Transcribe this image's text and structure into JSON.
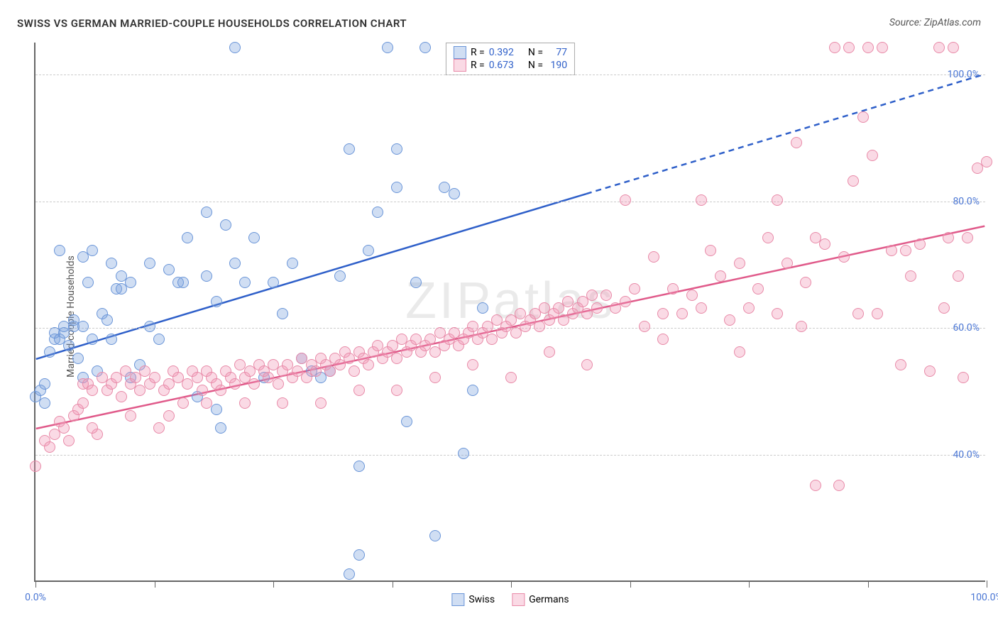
{
  "title": "SWISS VS GERMAN MARRIED-COUPLE HOUSEHOLDS CORRELATION CHART",
  "title_color": "#333333",
  "source_label": "Source: ZipAtlas.com",
  "source_color": "#555555",
  "ylabel": "Married-couple Households",
  "watermark": "ZIPatlas",
  "chart": {
    "type": "scatter",
    "xlim": [
      0,
      100
    ],
    "ylim": [
      20,
      105
    ],
    "y_gridlines": [
      40,
      60,
      80,
      100
    ],
    "y_tick_labels": [
      "40.0%",
      "60.0%",
      "80.0%",
      "100.0%"
    ],
    "y_tick_color": "#4a76d4",
    "x_ticks": [
      0,
      12.5,
      25,
      37.5,
      50,
      62.5,
      75,
      87.5,
      100
    ],
    "x_tick_labels_shown": {
      "0": "0.0%",
      "100": "100.0%"
    },
    "x_tick_color": "#4a76d4",
    "grid_color": "#cccccc",
    "axis_color": "#666666",
    "background_color": "#ffffff",
    "marker_radius": 8,
    "marker_stroke_width": 1.5,
    "series": [
      {
        "name": "Swiss",
        "fill_color": "rgba(120,160,220,0.35)",
        "stroke_color": "#6a95d8",
        "trend_color": "#2e5fc9",
        "trend_width": 2.5,
        "trend_solid_end_x": 58,
        "trend_y_at_0": 55,
        "trend_y_at_100": 100,
        "R": "0.392",
        "N": "77",
        "points": [
          [
            0,
            49
          ],
          [
            0.5,
            50
          ],
          [
            1,
            51
          ],
          [
            1.5,
            56
          ],
          [
            2,
            58
          ],
          [
            2,
            59
          ],
          [
            2.5,
            58
          ],
          [
            3,
            59
          ],
          [
            3,
            60
          ],
          [
            3.5,
            57
          ],
          [
            4,
            60
          ],
          [
            4,
            61
          ],
          [
            4.5,
            55
          ],
          [
            5,
            52
          ],
          [
            5,
            60
          ],
          [
            5.5,
            67
          ],
          [
            6,
            58
          ],
          [
            6.5,
            53
          ],
          [
            7,
            62
          ],
          [
            7.5,
            61
          ],
          [
            8,
            58
          ],
          [
            8.5,
            66
          ],
          [
            9,
            68
          ],
          [
            9,
            66
          ],
          [
            10,
            67
          ],
          [
            11,
            54
          ],
          [
            12,
            60
          ],
          [
            13,
            58
          ],
          [
            14,
            69
          ],
          [
            15,
            67
          ],
          [
            15.5,
            67
          ],
          [
            16,
            74
          ],
          [
            17,
            49
          ],
          [
            18,
            78
          ],
          [
            18,
            68
          ],
          [
            19,
            64
          ],
          [
            19.5,
            44
          ],
          [
            20,
            76
          ],
          [
            21,
            70
          ],
          [
            21,
            104
          ],
          [
            22,
            67
          ],
          [
            23,
            74
          ],
          [
            24,
            52
          ],
          [
            25,
            67
          ],
          [
            26,
            62
          ],
          [
            27,
            70
          ],
          [
            28,
            55
          ],
          [
            29,
            53
          ],
          [
            30,
            52
          ],
          [
            31,
            53
          ],
          [
            32,
            68
          ],
          [
            33,
            88
          ],
          [
            33,
            21
          ],
          [
            34,
            38
          ],
          [
            34,
            24
          ],
          [
            35,
            72
          ],
          [
            36,
            78
          ],
          [
            37,
            104
          ],
          [
            38,
            82
          ],
          [
            38,
            88
          ],
          [
            39,
            45
          ],
          [
            40,
            67
          ],
          [
            41,
            104
          ],
          [
            42,
            27
          ],
          [
            43,
            82
          ],
          [
            44,
            81
          ],
          [
            45,
            40
          ],
          [
            46,
            50
          ],
          [
            47,
            63
          ],
          [
            19,
            47
          ],
          [
            12,
            70
          ],
          [
            10,
            52
          ],
          [
            8,
            70
          ],
          [
            6,
            72
          ],
          [
            5,
            71
          ],
          [
            2.5,
            72
          ],
          [
            1,
            48
          ]
        ]
      },
      {
        "name": "Germans",
        "fill_color": "rgba(240,150,180,0.35)",
        "stroke_color": "#e88aa8",
        "trend_color": "#e05a8a",
        "trend_width": 2.5,
        "trend_solid_end_x": 100,
        "trend_y_at_0": 44,
        "trend_y_at_100": 76,
        "R": "0.673",
        "N": "190",
        "points": [
          [
            0,
            38
          ],
          [
            1,
            42
          ],
          [
            1.5,
            41
          ],
          [
            2,
            43
          ],
          [
            2.5,
            45
          ],
          [
            3,
            44
          ],
          [
            3.5,
            42
          ],
          [
            4,
            46
          ],
          [
            4.5,
            47
          ],
          [
            5,
            48
          ],
          [
            5,
            51
          ],
          [
            5.5,
            51
          ],
          [
            6,
            50
          ],
          [
            6.5,
            43
          ],
          [
            7,
            52
          ],
          [
            7.5,
            50
          ],
          [
            8,
            51
          ],
          [
            8.5,
            52
          ],
          [
            9,
            49
          ],
          [
            9.5,
            53
          ],
          [
            10,
            51
          ],
          [
            10.5,
            52
          ],
          [
            11,
            50
          ],
          [
            11.5,
            53
          ],
          [
            12,
            51
          ],
          [
            12.5,
            52
          ],
          [
            13,
            44
          ],
          [
            13.5,
            50
          ],
          [
            14,
            51
          ],
          [
            14.5,
            53
          ],
          [
            15,
            52
          ],
          [
            15.5,
            48
          ],
          [
            16,
            51
          ],
          [
            16.5,
            53
          ],
          [
            17,
            52
          ],
          [
            17.5,
            50
          ],
          [
            18,
            53
          ],
          [
            18.5,
            52
          ],
          [
            19,
            51
          ],
          [
            19.5,
            50
          ],
          [
            20,
            53
          ],
          [
            20.5,
            52
          ],
          [
            21,
            51
          ],
          [
            21.5,
            54
          ],
          [
            22,
            52
          ],
          [
            22.5,
            53
          ],
          [
            23,
            51
          ],
          [
            23.5,
            54
          ],
          [
            24,
            53
          ],
          [
            24.5,
            52
          ],
          [
            25,
            54
          ],
          [
            25.5,
            51
          ],
          [
            26,
            53
          ],
          [
            26.5,
            54
          ],
          [
            27,
            52
          ],
          [
            27.5,
            53
          ],
          [
            28,
            55
          ],
          [
            28.5,
            52
          ],
          [
            29,
            54
          ],
          [
            29.5,
            53
          ],
          [
            30,
            55
          ],
          [
            30.5,
            54
          ],
          [
            31,
            53
          ],
          [
            31.5,
            55
          ],
          [
            32,
            54
          ],
          [
            32.5,
            56
          ],
          [
            33,
            55
          ],
          [
            33.5,
            53
          ],
          [
            34,
            56
          ],
          [
            34.5,
            55
          ],
          [
            35,
            54
          ],
          [
            35.5,
            56
          ],
          [
            36,
            57
          ],
          [
            36.5,
            55
          ],
          [
            37,
            56
          ],
          [
            37.5,
            57
          ],
          [
            38,
            55
          ],
          [
            38.5,
            58
          ],
          [
            39,
            56
          ],
          [
            39.5,
            57
          ],
          [
            40,
            58
          ],
          [
            40.5,
            56
          ],
          [
            41,
            57
          ],
          [
            41.5,
            58
          ],
          [
            42,
            56
          ],
          [
            42.5,
            59
          ],
          [
            43,
            57
          ],
          [
            43.5,
            58
          ],
          [
            44,
            59
          ],
          [
            44.5,
            57
          ],
          [
            45,
            58
          ],
          [
            45.5,
            59
          ],
          [
            46,
            60
          ],
          [
            46.5,
            58
          ],
          [
            47,
            59
          ],
          [
            47.5,
            60
          ],
          [
            48,
            58
          ],
          [
            48.5,
            61
          ],
          [
            49,
            59
          ],
          [
            49.5,
            60
          ],
          [
            50,
            61
          ],
          [
            50.5,
            59
          ],
          [
            51,
            62
          ],
          [
            51.5,
            60
          ],
          [
            52,
            61
          ],
          [
            52.5,
            62
          ],
          [
            53,
            60
          ],
          [
            53.5,
            63
          ],
          [
            54,
            61
          ],
          [
            54.5,
            62
          ],
          [
            55,
            63
          ],
          [
            55.5,
            61
          ],
          [
            56,
            64
          ],
          [
            56.5,
            62
          ],
          [
            57,
            63
          ],
          [
            57.5,
            64
          ],
          [
            58,
            62
          ],
          [
            58.5,
            65
          ],
          [
            59,
            63
          ],
          [
            60,
            65
          ],
          [
            61,
            63
          ],
          [
            62,
            64
          ],
          [
            63,
            66
          ],
          [
            64,
            60
          ],
          [
            65,
            71
          ],
          [
            66,
            62
          ],
          [
            67,
            66
          ],
          [
            68,
            62
          ],
          [
            69,
            65
          ],
          [
            70,
            63
          ],
          [
            71,
            72
          ],
          [
            72,
            68
          ],
          [
            73,
            61
          ],
          [
            74,
            70
          ],
          [
            75,
            63
          ],
          [
            76,
            66
          ],
          [
            77,
            74
          ],
          [
            78,
            62
          ],
          [
            79,
            70
          ],
          [
            80,
            89
          ],
          [
            80.5,
            60
          ],
          [
            81,
            67
          ],
          [
            82,
            35
          ],
          [
            83,
            73
          ],
          [
            84,
            104
          ],
          [
            84.5,
            35
          ],
          [
            85,
            71
          ],
          [
            85.5,
            104
          ],
          [
            86,
            83
          ],
          [
            86.5,
            62
          ],
          [
            87,
            93
          ],
          [
            87.5,
            104
          ],
          [
            88,
            87
          ],
          [
            88.5,
            62
          ],
          [
            89,
            104
          ],
          [
            90,
            72
          ],
          [
            91,
            54
          ],
          [
            91.5,
            72
          ],
          [
            92,
            68
          ],
          [
            93,
            73
          ],
          [
            94,
            53
          ],
          [
            95,
            104
          ],
          [
            95.5,
            63
          ],
          [
            96,
            74
          ],
          [
            96.5,
            104
          ],
          [
            97,
            68
          ],
          [
            97.5,
            52
          ],
          [
            98,
            74
          ],
          [
            99,
            85
          ],
          [
            100,
            86
          ],
          [
            82,
            74
          ],
          [
            78,
            80
          ],
          [
            74,
            56
          ],
          [
            70,
            80
          ],
          [
            66,
            58
          ],
          [
            62,
            80
          ],
          [
            58,
            54
          ],
          [
            54,
            56
          ],
          [
            50,
            52
          ],
          [
            46,
            54
          ],
          [
            42,
            52
          ],
          [
            38,
            50
          ],
          [
            34,
            50
          ],
          [
            30,
            48
          ],
          [
            26,
            48
          ],
          [
            22,
            48
          ],
          [
            18,
            48
          ],
          [
            14,
            46
          ],
          [
            10,
            46
          ],
          [
            6,
            44
          ]
        ]
      }
    ]
  },
  "legend_top": {
    "r_label": "R =",
    "n_label": "N =",
    "value_color": "#2e5fc9",
    "label_color": "#333333"
  },
  "legend_bottom": {
    "items": [
      "Swiss",
      "Germans"
    ]
  }
}
